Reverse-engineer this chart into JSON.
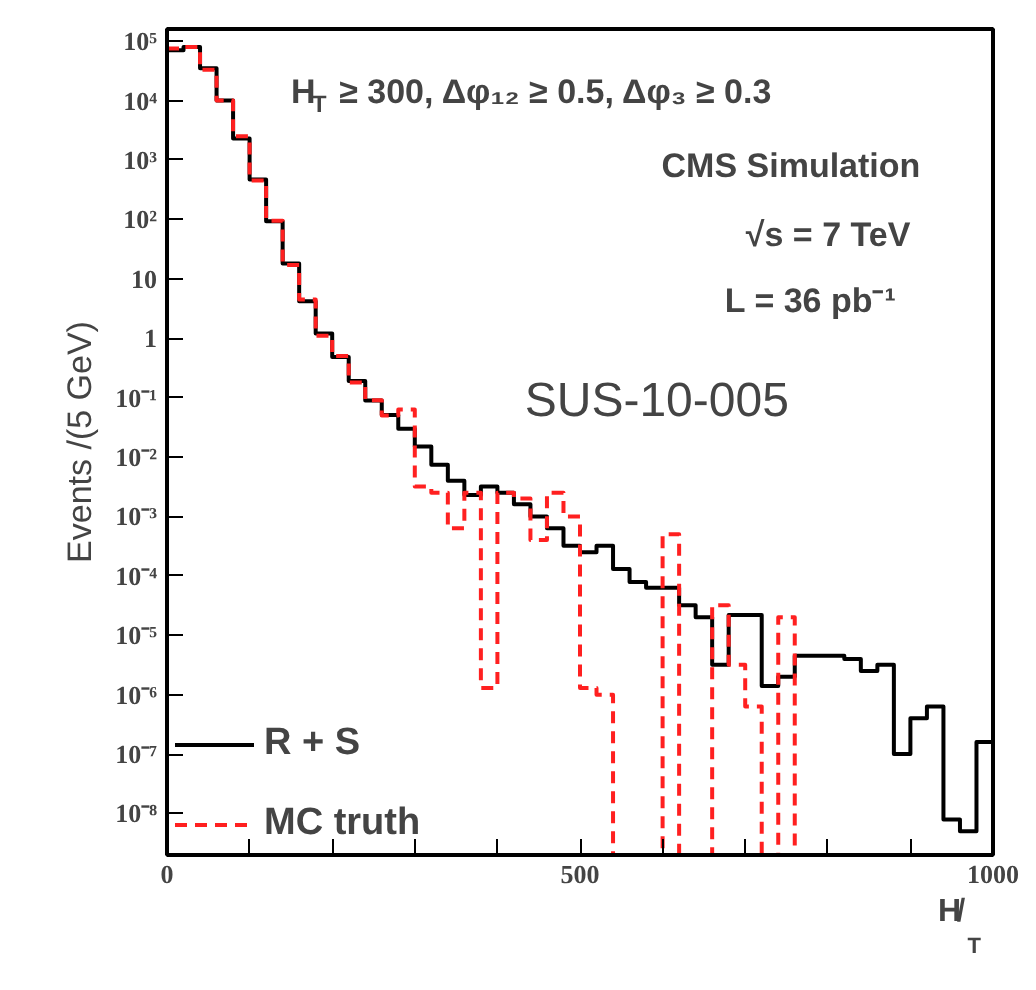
{
  "chart_data": {
    "type": "histogram",
    "xlabel": "H̸$_{T}$",
    "ylabel": "Events /(5 GeV)",
    "log": "y",
    "bins": [
      0,
      20,
      40,
      60,
      80,
      100,
      120,
      140,
      160,
      180,
      200,
      220,
      240,
      260,
      280,
      300,
      320,
      340,
      360,
      380,
      400,
      420,
      440,
      460,
      480,
      500,
      520,
      540,
      560,
      580,
      600,
      620,
      640,
      660,
      680,
      700,
      720,
      740,
      760,
      780,
      800,
      820,
      840,
      860,
      880,
      900,
      920,
      940,
      960,
      980,
      1000
    ],
    "series": [
      {
        "name": "R + S",
        "color": "#000000",
        "line_style": "solid",
        "values": [
          70000,
          80000,
          35000,
          10000,
          2300,
          470,
          93,
          18,
          4.2,
          1.2,
          0.48,
          0.19,
          0.089,
          0.051,
          0.03,
          0.015,
          0.0074,
          0.004,
          0.0023,
          0.0032,
          0.0025,
          0.0016,
          0.001,
          0.00063,
          0.00032,
          0.00025,
          0.00032,
          0.00013,
          7.9e-05,
          6.3e-05,
          6.3e-05,
          3.2e-05,
          2e-05,
          3.2e-06,
          2.2e-05,
          2.2e-05,
          1.4e-06,
          2e-06,
          4.5e-06,
          4.5e-06,
          4.5e-06,
          4e-06,
          2.5e-06,
          3.2e-06,
          1e-07,
          4e-07,
          6.3e-07,
          7.9e-09,
          5e-09,
          1.6e-07
        ]
      },
      {
        "name": "MC truth",
        "color": "#ff2020",
        "line_style": "dashed",
        "values": [
          75000,
          80000,
          33000,
          10000,
          2500,
          450,
          95,
          17,
          4.5,
          1.1,
          0.5,
          0.18,
          0.09,
          0.05,
          0.063,
          0.0032,
          0.0025,
          0.00063,
          0.0025,
          1.3e-06,
          0.0025,
          0.002,
          0.0004,
          0.0025,
          0.001,
          1.3e-06,
          1e-06,
          null,
          null,
          null,
          0.0005,
          null,
          null,
          3.2e-05,
          3.2e-06,
          6.3e-07,
          null,
          2e-05,
          null,
          null,
          null,
          null,
          null,
          null,
          null,
          null,
          null,
          null,
          null,
          null
        ]
      }
    ],
    "xlim": [
      0,
      1000
    ],
    "xticks": [
      0,
      {
        "value": 100,
        "label": null
      },
      {
        "value": 200,
        "label": null
      },
      {
        "value": 300,
        "label": null
      },
      {
        "value": 400,
        "label": null
      },
      500,
      {
        "value": 600,
        "label": null
      },
      {
        "value": 700,
        "label": null
      },
      {
        "value": 800,
        "label": null
      },
      {
        "value": 900,
        "label": null
      },
      1000
    ],
    "ylim": [
      2e-09,
      160000
    ],
    "yticks": [
      {
        "value": 1e-08,
        "label": "10⁻⁸"
      },
      {
        "value": 1e-07,
        "label": "10⁻⁷"
      },
      {
        "value": 1e-06,
        "label": "10⁻⁶"
      },
      {
        "value": 1e-05,
        "label": "10⁻⁵"
      },
      {
        "value": 0.0001,
        "label": "10⁻⁴"
      },
      {
        "value": 0.001,
        "label": "10⁻³"
      },
      {
        "value": 0.01,
        "label": "10⁻²"
      },
      {
        "value": 0.1,
        "label": "10⁻¹"
      },
      1,
      10,
      {
        "value": 100,
        "label": "10²"
      },
      {
        "value": 1000,
        "label": "10³"
      },
      {
        "value": 10000,
        "label": "10⁴"
      },
      {
        "value": 100000,
        "label": "10⁵"
      }
    ],
    "grid": false,
    "legend": "bottom left",
    "annotations": [
      "H$_{T}$ ≥ 300, Δφ₁₂ ≥ 0.5, Δφ₃ ≥ 0.3",
      "CMS Simulation",
      "√s = 7 TeV",
      "L = 36 pb⁻¹",
      "SUS-10-005"
    ]
  }
}
